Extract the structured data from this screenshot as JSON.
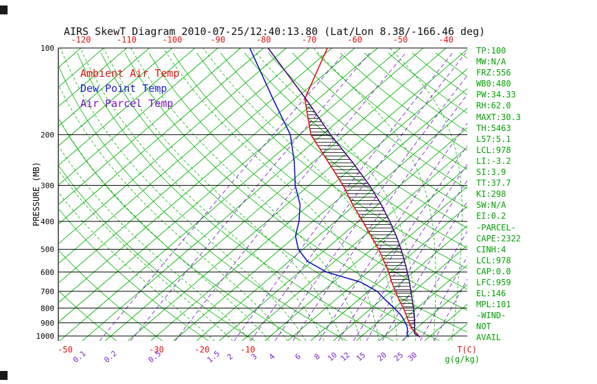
{
  "title": "AIRS SkewT Diagram 2010-07-25/12:40:13.80 (Lat/Lon 8.38/-166.46 deg)",
  "legend": {
    "items": [
      {
        "id": "ambient",
        "label": "Ambient Air Temp",
        "color": "#e01010"
      },
      {
        "id": "dewpoint",
        "label": "Dew Point Temp",
        "color": "#2020cc"
      },
      {
        "id": "parcel",
        "label": "Air Parcel Temp",
        "color": "#7d10cc"
      }
    ]
  },
  "axes": {
    "left_label": "PRESSURE (MB)",
    "pressure_ticks": [
      "100",
      "200",
      "300",
      "400",
      "500",
      "600",
      "700",
      "800",
      "900",
      "1000"
    ],
    "top_ticks": [
      "-120",
      "-110",
      "-100",
      "-90",
      "-80",
      "-70",
      "-60",
      "-50",
      "-40"
    ],
    "bottom_temp_ticks": [
      "-50",
      "-30",
      "-20",
      "-10"
    ],
    "mixing_ratio_ticks": [
      "0.1",
      "0.2",
      "0.5",
      "1.5",
      "2",
      "3",
      "4",
      "6",
      "8",
      "10",
      "12",
      "15",
      "20",
      "25",
      "30"
    ],
    "temp_units_label": "T(C)",
    "mixing_units_label": "g(g/kg)"
  },
  "stats_panel": {
    "lines": [
      "TP:100",
      "MW:N/A",
      "FRZ:556",
      "WB0:480",
      "PW:34.33",
      "RH:62.0",
      "MAXT:30.3",
      "TH:5463",
      "L57:5.1",
      "LCL:978",
      "LI:-3.2",
      "SI:3.9",
      "TT:37.7",
      "KI:298",
      "SW:N/A",
      "EI:0.2",
      "-PARCEL-",
      "CAPE:2322",
      "CINH:4",
      "LCL:978",
      "CAP:0.0",
      "LFC:959",
      "EL:146",
      "MPL:101",
      "-WIND-",
      "NOT",
      "AVAIL"
    ]
  },
  "colors": {
    "grid_green": "#00b400",
    "mixing_purple": "#7d1fd1",
    "tick_red": "#e01010",
    "stats_green": "#00a000",
    "axis_black": "#000000"
  },
  "chart_data": {
    "type": "line",
    "variant": "skew-t-log-p-sounding",
    "title": "AIRS SkewT Diagram 2010-07-25/12:40:13.80 (Lat/Lon 8.38/-166.46 deg)",
    "xlabel": "T(C)",
    "ylabel": "PRESSURE (MB)",
    "y_scale": "log",
    "y_range_mb": [
      100,
      1040
    ],
    "x_range_C_at_surface": [
      -50,
      40
    ],
    "grid": {
      "isotherm_step_C": 5,
      "isotherm_range_C": [
        -120,
        45
      ],
      "dry_adiabats_theta_K": {
        "min": 233,
        "max": 463,
        "step": 10
      },
      "moist_adiabats_start_C": {
        "min": -16,
        "max": 40,
        "step": 4
      },
      "mixing_ratio_lines_g_kg": [
        0.1,
        0.2,
        0.5,
        1.5,
        2,
        3,
        4,
        6,
        8,
        10,
        12,
        15,
        20,
        25,
        30
      ]
    },
    "pressure_mb": [
      1008,
      1000,
      978,
      950,
      925,
      900,
      850,
      800,
      750,
      700,
      650,
      600,
      550,
      500,
      450,
      400,
      350,
      300,
      250,
      200,
      150,
      100
    ],
    "series": [
      {
        "name": "Ambient Air Temp",
        "color": "#e01010",
        "temps_C": [
          28,
          27.5,
          26.3,
          24.5,
          23.2,
          22,
          19.6,
          17,
          14,
          11,
          7.8,
          4.6,
          0.8,
          -3.4,
          -8.4,
          -14,
          -20.5,
          -27.5,
          -36.5,
          -47.5,
          -58,
          -66
        ]
      },
      {
        "name": "Dew Point Temp",
        "color": "#1414bb",
        "temps_C": [
          25.5,
          25,
          24.2,
          23.4,
          22.4,
          21.2,
          18.5,
          15,
          11,
          7,
          1,
          -9,
          -16,
          -21,
          -25,
          -28,
          -32,
          -38,
          -44,
          -52,
          -65,
          -83
        ]
      },
      {
        "name": "Air Parcel Temp",
        "color": "#46087c",
        "temps_C": [
          28,
          27.4,
          25.8,
          24.9,
          24.1,
          23.2,
          21.3,
          19.2,
          16.9,
          14.4,
          11.7,
          8.7,
          5.3,
          1.5,
          -2.9,
          -8.1,
          -14.2,
          -21.7,
          -31.2,
          -43.2,
          -57.8,
          -79
        ]
      }
    ],
    "cape_hatch": {
      "pressure_bottom_mb": 950,
      "pressure_top_mb": 150
    },
    "legend_position": "upper-left-inside",
    "annotations": [
      "CAPE area hatched with horizontal lines between ambient and parcel curves"
    ]
  }
}
